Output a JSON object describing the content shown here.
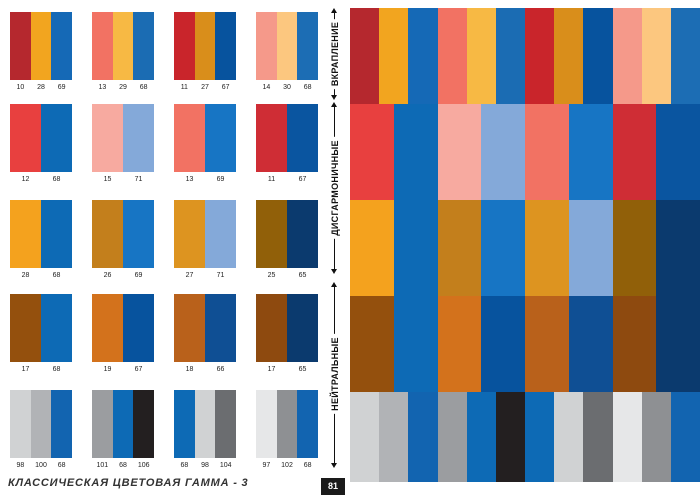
{
  "footer": {
    "title": "КЛАССИЧЕСКАЯ ЦВЕТОВАЯ ГАММА - 3",
    "page_number": "81"
  },
  "section_labels": {
    "accent": "ВКРАПЛЕНИЕ",
    "disharmonious": "ДИСГАРМОНИЧНЫЕ",
    "neutral": "НЕЙТРАЛЬНЫЕ"
  },
  "swatches": [
    {
      "colors": [
        "#b5282e",
        "#f2a51f",
        "#1569b6"
      ],
      "codes": [
        "10",
        "28",
        "69"
      ]
    },
    {
      "colors": [
        "#f27263",
        "#f7b944",
        "#1b6cb3"
      ],
      "codes": [
        "13",
        "29",
        "68"
      ]
    },
    {
      "colors": [
        "#c9252b",
        "#d98e1b",
        "#07539e"
      ],
      "codes": [
        "11",
        "27",
        "67"
      ]
    },
    {
      "colors": [
        "#f5998a",
        "#fcc77f",
        "#1c6db4"
      ],
      "codes": [
        "14",
        "30",
        "68"
      ]
    },
    {
      "colors": [
        "#e8403f",
        "#0d6ab5"
      ],
      "codes": [
        "12",
        "68"
      ]
    },
    {
      "colors": [
        "#f7aaa0",
        "#84a9d9"
      ],
      "codes": [
        "15",
        "71"
      ]
    },
    {
      "colors": [
        "#f27263",
        "#1775c4"
      ],
      "codes": [
        "13",
        "69"
      ]
    },
    {
      "colors": [
        "#cf2d35",
        "#0a55a0"
      ],
      "codes": [
        "11",
        "67"
      ]
    },
    {
      "colors": [
        "#f4a21e",
        "#0d6ab5"
      ],
      "codes": [
        "28",
        "68"
      ]
    },
    {
      "colors": [
        "#c37f1c",
        "#1775c4"
      ],
      "codes": [
        "26",
        "69"
      ]
    },
    {
      "colors": [
        "#dd9420",
        "#84a9d9"
      ],
      "codes": [
        "27",
        "71"
      ]
    },
    {
      "colors": [
        "#916009",
        "#0b3a6e"
      ],
      "codes": [
        "25",
        "65"
      ]
    },
    {
      "colors": [
        "#94500d",
        "#0d6ab5"
      ],
      "codes": [
        "17",
        "68"
      ]
    },
    {
      "colors": [
        "#d3721c",
        "#07539e"
      ],
      "codes": [
        "19",
        "67"
      ]
    },
    {
      "colors": [
        "#b9611b",
        "#0f4f94"
      ],
      "codes": [
        "18",
        "66"
      ]
    },
    {
      "colors": [
        "#8e4a0f",
        "#0b3a6e"
      ],
      "codes": [
        "17",
        "65"
      ]
    },
    {
      "colors": [
        "#d0d2d3",
        "#b1b3b6",
        "#1264b0"
      ],
      "codes": [
        "98",
        "100",
        "68"
      ]
    },
    {
      "colors": [
        "#9b9da0",
        "#0d6ab5",
        "#231f20"
      ],
      "codes": [
        "101",
        "68",
        "106"
      ]
    },
    {
      "colors": [
        "#0d6ab5",
        "#d0d2d3",
        "#6b6d70"
      ],
      "codes": [
        "68",
        "98",
        "104"
      ]
    },
    {
      "colors": [
        "#e6e7e8",
        "#8e9093",
        "#1264b0"
      ],
      "codes": [
        "97",
        "102",
        "68"
      ]
    }
  ],
  "panel_rows": [
    [
      "#b5282e",
      "#f2a51f",
      "#1569b6",
      "#f27263",
      "#f7b944",
      "#1b6cb3",
      "#c9252b",
      "#d98e1b",
      "#07539e",
      "#f5998a",
      "#fcc77f",
      "#1c6db4"
    ],
    [
      "#e8403f",
      "#0d6ab5",
      "#f7aaa0",
      "#84a9d9",
      "#f27263",
      "#1775c4",
      "#cf2d35",
      "#0a55a0"
    ],
    [
      "#f4a21e",
      "#0d6ab5",
      "#c37f1c",
      "#1775c4",
      "#dd9420",
      "#84a9d9",
      "#916009",
      "#0b3a6e"
    ],
    [
      "#94500d",
      "#0d6ab5",
      "#d3721c",
      "#07539e",
      "#b9611b",
      "#0f4f94",
      "#8e4a0f",
      "#0b3a6e"
    ],
    [
      "#d0d2d3",
      "#b1b3b6",
      "#1264b0",
      "#9b9da0",
      "#0d6ab5",
      "#231f20",
      "#0d6ab5",
      "#d0d2d3",
      "#6b6d70",
      "#e6e7e8",
      "#8e9093",
      "#1264b0"
    ]
  ]
}
